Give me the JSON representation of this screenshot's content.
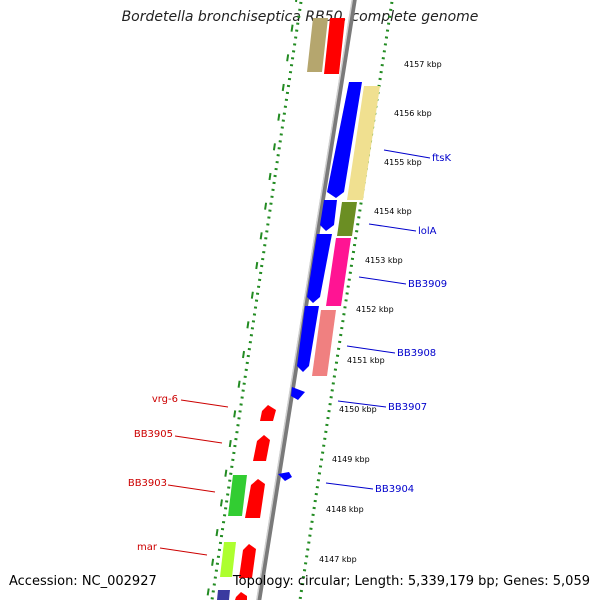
{
  "title": "Bordetella bronchiseptica RB50, complete genome",
  "footer": {
    "accession": "Accession: NC_002927",
    "summary": "Topology: circular; Length: 5,339,179 bp; Genes: 5,059"
  },
  "ticks": [
    "4157 kbp",
    "4156 kbp",
    "4155 kbp",
    "4154 kbp",
    "4153 kbp",
    "4152 kbp",
    "4151 kbp",
    "4150 kbp",
    "4149 kbp",
    "4148 kbp",
    "4147 kbp"
  ],
  "gene_labels_right": [
    "ftsK",
    "lolA",
    "BB3909",
    "BB3908",
    "BB3907",
    "BB3904"
  ],
  "gene_labels_left": [
    "vrg-6",
    "BB3905",
    "BB3903",
    "mar"
  ],
  "colors": {
    "label_right": "#0000cc",
    "label_left": "#cc0000",
    "dots": "#228b22",
    "backbone": "#808080",
    "cds": "#0000ff",
    "gene": "#ff0000"
  }
}
